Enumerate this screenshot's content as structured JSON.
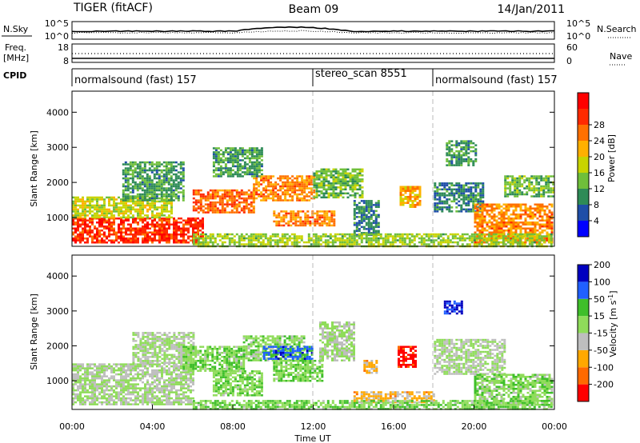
{
  "header": {
    "radar": "TIGER (fitACF)",
    "beam": "Beam 09",
    "date": "14/Jan/2011"
  },
  "side_labels": {
    "nsky": "N.Sky",
    "freq_line1": "Freq.",
    "freq_line2": "[MHz]",
    "cpid": "CPID",
    "nsearch": "N.Search",
    "nave": "Nave",
    "nsky_ticks": [
      "10^5",
      "10^0"
    ],
    "nsearch_ticks": [
      "10^5",
      "10^0"
    ],
    "freq_ticks": [
      "18",
      "8"
    ],
    "nave_ticks": [
      "60",
      "0"
    ]
  },
  "cpid_segments": [
    {
      "label": "normalsound (fast) 157",
      "start_hour": 0
    },
    {
      "label": "stereo_scan 8551",
      "start_hour": 12
    },
    {
      "label": "normalsound (fast) 157",
      "start_hour": 18
    }
  ],
  "x_axis": {
    "label": "Time UT",
    "ticks": [
      "00:00",
      "04:00",
      "08:00",
      "12:00",
      "16:00",
      "20:00",
      "00:00"
    ]
  },
  "power_panel": {
    "ylabel": "Slant Range [km]",
    "yticks": [
      "1000",
      "2000",
      "3000",
      "4000"
    ],
    "colorbar_label": "Power [dB]",
    "colorbar_ticks": [
      "4",
      "8",
      "12",
      "16",
      "20",
      "24",
      "28"
    ],
    "colors": [
      "#0000ff",
      "#1e4ea8",
      "#2e8b57",
      "#6fbf3a",
      "#c8d400",
      "#ffb000",
      "#ff7000",
      "#ff2a00",
      "#ff0000"
    ]
  },
  "velocity_panel": {
    "ylabel": "Slant Range [km]",
    "yticks": [
      "1000",
      "2000",
      "3000",
      "4000"
    ],
    "colorbar_label_main": "Velocity [m s",
    "colorbar_label_sup": "-1",
    "colorbar_label_end": "]",
    "colorbar_ticks": [
      "-200",
      "-100",
      "-50",
      "-15",
      "15",
      "50",
      "100",
      "200"
    ],
    "colors": [
      "#ff0000",
      "#ff6a00",
      "#ffa800",
      "#bebebe",
      "#8fdc5a",
      "#3fbf2a",
      "#2060ff",
      "#0000c0"
    ]
  },
  "chart_data": [
    {
      "type": "heatmap",
      "title": "Power",
      "xlabel": "Time UT",
      "ylabel": "Slant Range [km]",
      "x_range_hours": [
        0,
        24
      ],
      "ylim": [
        180,
        4600
      ],
      "colorbar": {
        "label": "Power [dB]",
        "range": [
          0,
          32
        ]
      },
      "regions": [
        {
          "t": [
            0,
            6.5
          ],
          "r": [
            300,
            1000
          ],
          "value": 27
        },
        {
          "t": [
            0,
            5
          ],
          "r": [
            1000,
            1600
          ],
          "value": 16
        },
        {
          "t": [
            2.5,
            5.5
          ],
          "r": [
            1500,
            2600
          ],
          "value": 10
        },
        {
          "t": [
            6,
            9
          ],
          "r": [
            1150,
            1800
          ],
          "value": 24
        },
        {
          "t": [
            9,
            12
          ],
          "r": [
            1500,
            2200
          ],
          "value": 22
        },
        {
          "t": [
            7,
            9.5
          ],
          "r": [
            2200,
            3000
          ],
          "value": 10
        },
        {
          "t": [
            10,
            13
          ],
          "r": [
            780,
            1200
          ],
          "value": 22
        },
        {
          "t": [
            12,
            14.5
          ],
          "r": [
            1600,
            2400
          ],
          "value": 12
        },
        {
          "t": [
            14,
            15.2
          ],
          "r": [
            500,
            1500
          ],
          "value": 8
        },
        {
          "t": [
            16.3,
            17.3
          ],
          "r": [
            1300,
            1900
          ],
          "value": 20
        },
        {
          "t": [
            18,
            20.5
          ],
          "r": [
            1200,
            2000
          ],
          "value": 8
        },
        {
          "t": [
            18.6,
            20.1
          ],
          "r": [
            2500,
            3200
          ],
          "value": 10
        },
        {
          "t": [
            20,
            23.9
          ],
          "r": [
            300,
            1400
          ],
          "value": 22
        },
        {
          "t": [
            21.5,
            23.9
          ],
          "r": [
            1600,
            2200
          ],
          "value": 12
        },
        {
          "t": [
            6,
            23.9
          ],
          "r": [
            200,
            550
          ],
          "value": 14
        }
      ]
    },
    {
      "type": "heatmap",
      "title": "Velocity",
      "xlabel": "Time UT",
      "ylabel": "Slant Range [km]",
      "x_range_hours": [
        0,
        24
      ],
      "ylim": [
        180,
        4600
      ],
      "colorbar": {
        "label": "Velocity [m s-1]",
        "range": [
          -200,
          200
        ]
      },
      "regions": [
        {
          "t": [
            0,
            6
          ],
          "r": [
            300,
            1500
          ],
          "value": 0
        },
        {
          "t": [
            3,
            6
          ],
          "r": [
            1500,
            2400
          ],
          "value": 0
        },
        {
          "t": [
            5.5,
            8.5
          ],
          "r": [
            1300,
            2000
          ],
          "value": 40
        },
        {
          "t": [
            7,
            9.5
          ],
          "r": [
            600,
            1300
          ],
          "value": 40
        },
        {
          "t": [
            8.5,
            11.5
          ],
          "r": [
            1600,
            2300
          ],
          "value": 30
        },
        {
          "t": [
            9.5,
            12
          ],
          "r": [
            1600,
            2000
          ],
          "value": 120
        },
        {
          "t": [
            10,
            12.5
          ],
          "r": [
            1000,
            1600
          ],
          "value": 40
        },
        {
          "t": [
            12.3,
            14
          ],
          "r": [
            1600,
            2700
          ],
          "value": 0
        },
        {
          "t": [
            14.5,
            15.2
          ],
          "r": [
            1250,
            1600
          ],
          "value": -60
        },
        {
          "t": [
            16.2,
            17.1
          ],
          "r": [
            1400,
            2000
          ],
          "value": -180
        },
        {
          "t": [
            18.5,
            19.4
          ],
          "r": [
            2900,
            3300
          ],
          "value": 150
        },
        {
          "t": [
            18,
            21.5
          ],
          "r": [
            1200,
            2200
          ],
          "value": 0
        },
        {
          "t": [
            20,
            23.9
          ],
          "r": [
            300,
            1200
          ],
          "value": 30
        },
        {
          "t": [
            14,
            18
          ],
          "r": [
            400,
            700
          ],
          "value": -60
        },
        {
          "t": [
            6,
            23.9
          ],
          "r": [
            200,
            450
          ],
          "value": 40
        }
      ]
    }
  ]
}
